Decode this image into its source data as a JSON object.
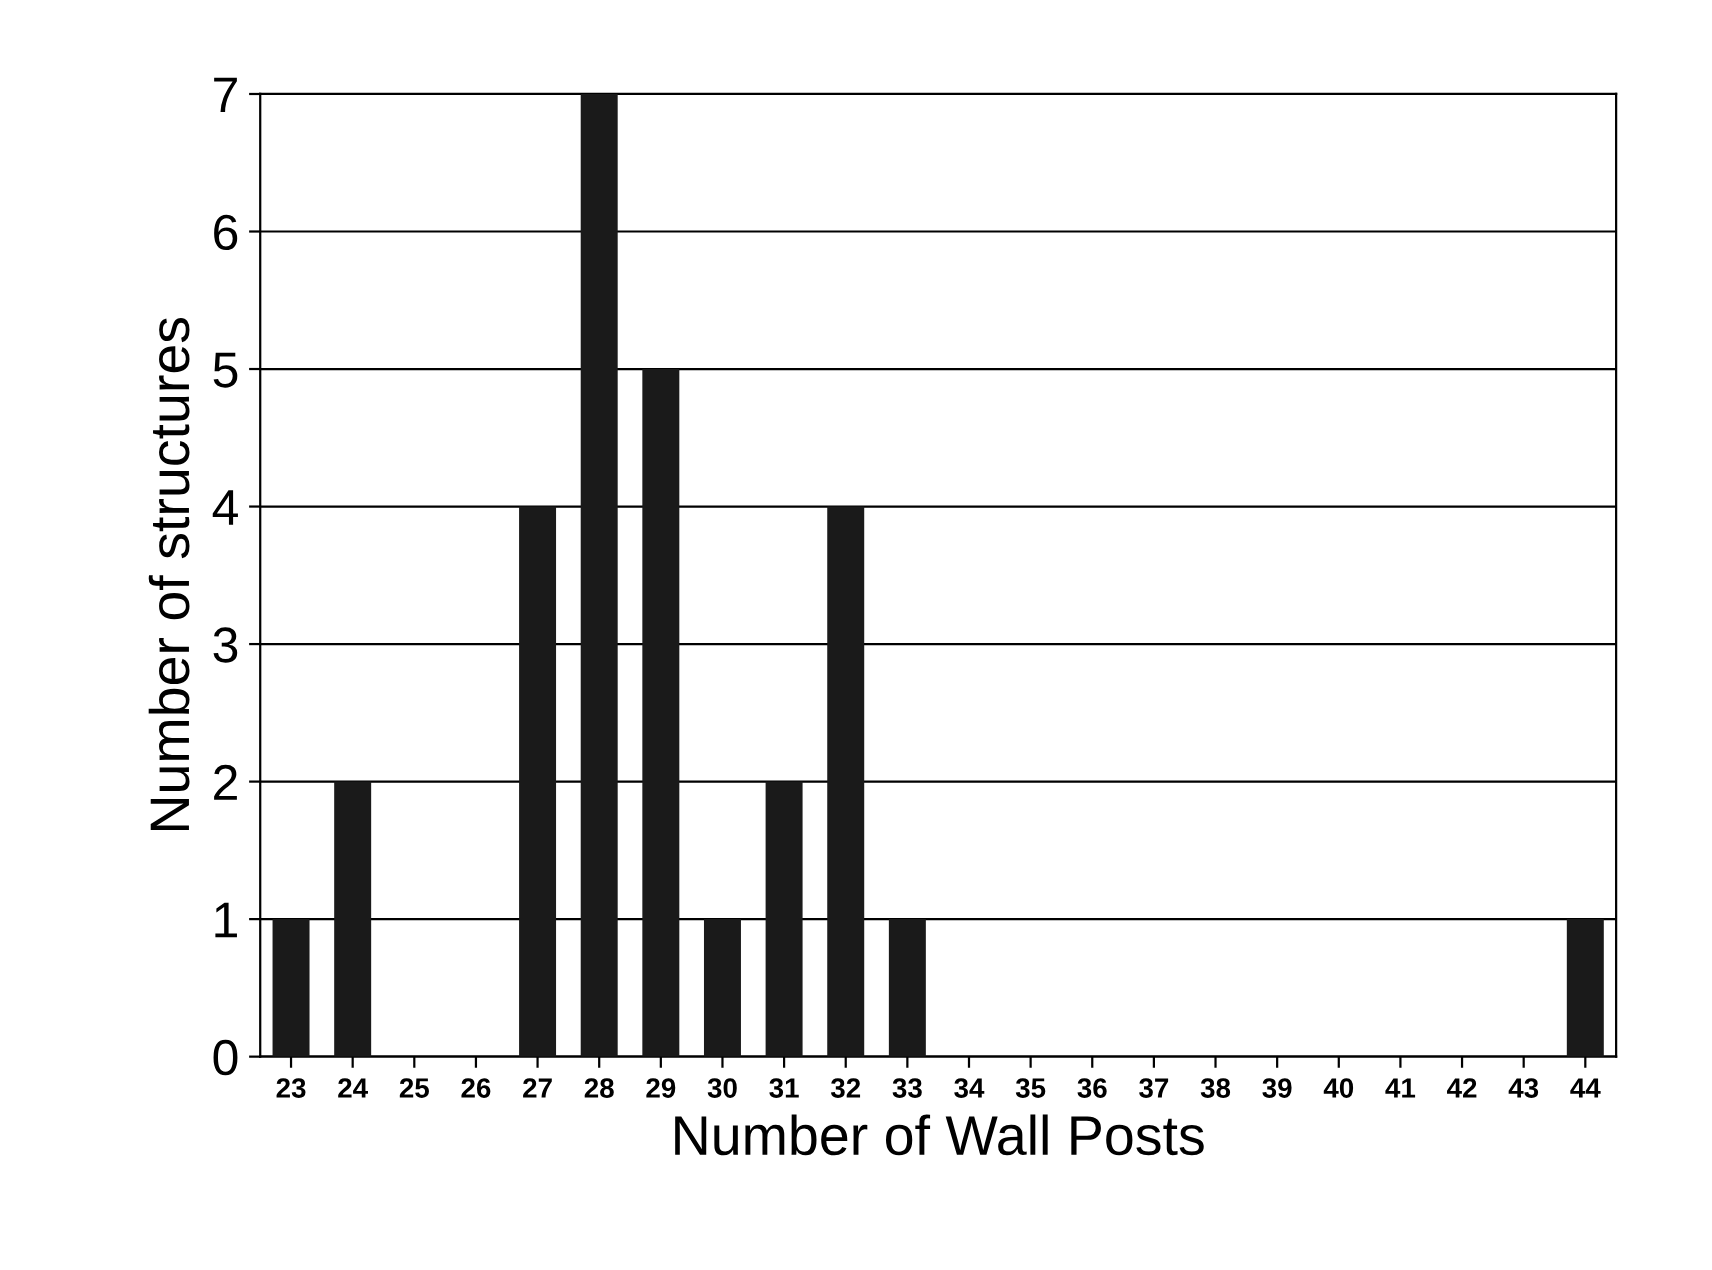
{
  "chart_data": {
    "type": "bar",
    "xlabel": "Number of Wall Posts",
    "ylabel": "Number of structures",
    "categories": [
      "23",
      "24",
      "25",
      "26",
      "27",
      "28",
      "29",
      "30",
      "31",
      "32",
      "33",
      "34",
      "35",
      "36",
      "37",
      "38",
      "39",
      "40",
      "41",
      "42",
      "43",
      "44"
    ],
    "values": [
      1,
      2,
      0,
      0,
      4,
      7,
      5,
      1,
      2,
      4,
      1,
      0,
      0,
      0,
      0,
      0,
      0,
      0,
      0,
      0,
      0,
      1
    ],
    "color": "#1a1a1a",
    "ylim": [
      0,
      7
    ],
    "yticks": [
      0,
      1,
      2,
      3,
      4,
      5,
      6,
      7
    ],
    "grid": "y"
  }
}
